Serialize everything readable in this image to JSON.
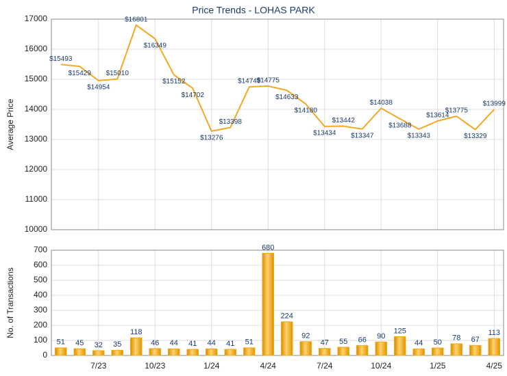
{
  "chart_data": [
    {
      "type": "line",
      "title": "Price Trends - LOHAS PARK",
      "ylabel": "Average Price",
      "categories": [
        null,
        null,
        "7/23",
        null,
        null,
        "10/23",
        null,
        null,
        "1/24",
        null,
        null,
        "4/24",
        null,
        null,
        "7/24",
        null,
        null,
        "10/24",
        null,
        null,
        "1/25",
        null,
        null,
        "4/25"
      ],
      "values": [
        15493,
        15429,
        14954,
        15010,
        16801,
        16349,
        15152,
        14702,
        13276,
        13398,
        14749,
        14775,
        14633,
        14180,
        13434,
        13442,
        13347,
        14038,
        13688,
        13343,
        13614,
        13775,
        13329,
        13999
      ],
      "value_labels": [
        "$15493",
        "$15429",
        "$14954",
        "$15010",
        "$16801",
        "$16349",
        "$15152",
        "$14702",
        "$13276",
        "$13398",
        "$14749",
        "$14775",
        "$14633",
        "$14180",
        "$13434",
        "$13442",
        "$13347",
        "$14038",
        "$13688",
        "$13343",
        "$13614",
        "$13775",
        "$13329",
        "$13999"
      ],
      "color": "#f5a623",
      "ylim": [
        10000,
        17000
      ],
      "yticks": [
        10000,
        11000,
        12000,
        13000,
        14000,
        15000,
        16000,
        17000
      ],
      "grid": true
    },
    {
      "type": "bar",
      "ylabel": "No. of Transactions",
      "categories": [
        null,
        null,
        "7/23",
        null,
        null,
        "10/23",
        null,
        null,
        "1/24",
        null,
        null,
        "4/24",
        null,
        null,
        "7/24",
        null,
        null,
        "10/24",
        null,
        null,
        "1/25",
        null,
        null,
        "4/25"
      ],
      "values": [
        51,
        45,
        32,
        35,
        118,
        46,
        44,
        41,
        44,
        41,
        51,
        680,
        224,
        92,
        47,
        55,
        66,
        90,
        125,
        44,
        50,
        78,
        67,
        113
      ],
      "color": "#f0a818",
      "ylim": [
        0,
        700
      ],
      "yticks": [
        0,
        100,
        200,
        300,
        400,
        500,
        600,
        700
      ],
      "grid": true
    }
  ]
}
